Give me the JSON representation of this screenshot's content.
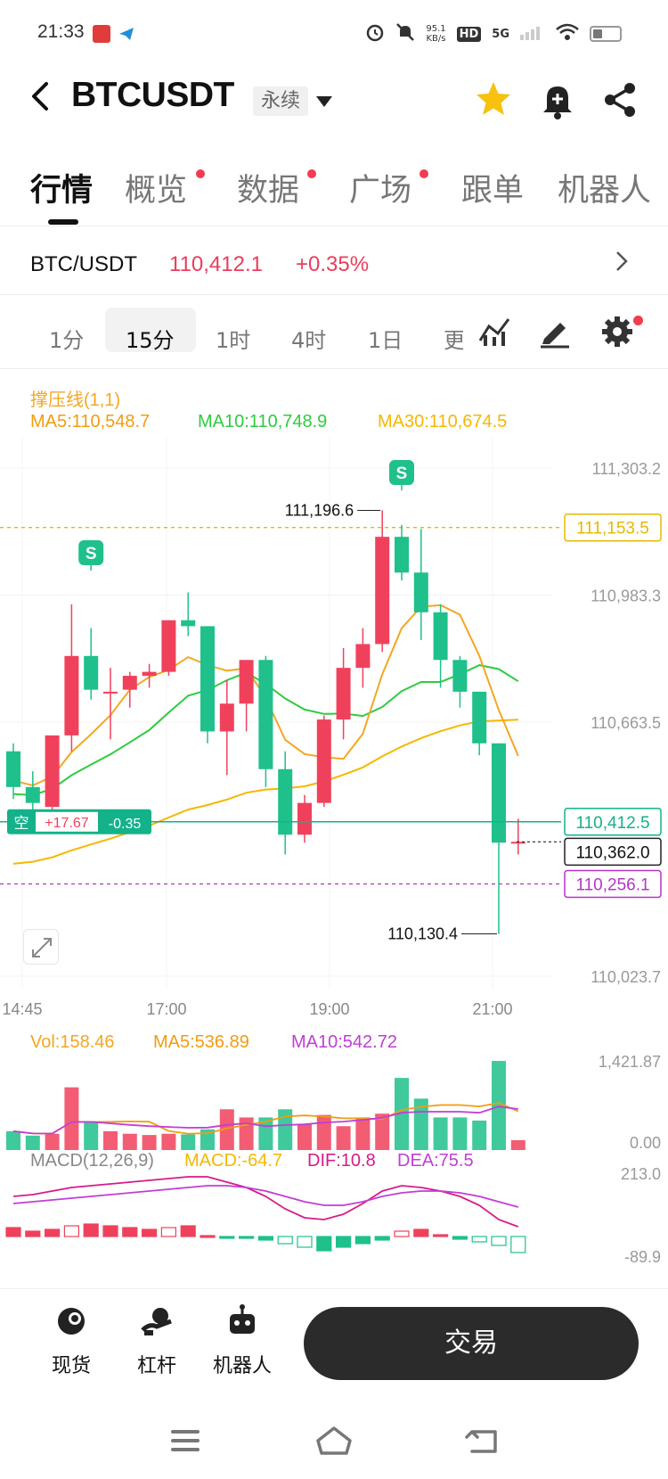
{
  "status_bar": {
    "time": "21:33",
    "net_speed_value": "95.1",
    "net_speed_unit": "KB/s",
    "hd_label": "HD",
    "network_label": "5G"
  },
  "header": {
    "symbol": "BTCUSDT",
    "contract_type": "永续"
  },
  "tabs": [
    {
      "label": "行情",
      "active": true,
      "dot": false
    },
    {
      "label": "概览",
      "active": false,
      "dot": true
    },
    {
      "label": "数据",
      "active": false,
      "dot": true
    },
    {
      "label": "广场",
      "active": false,
      "dot": true
    },
    {
      "label": "跟单",
      "active": false,
      "dot": false
    },
    {
      "label": "机器人",
      "active": false,
      "dot": false
    }
  ],
  "ticker": {
    "pair": "BTC/USDT",
    "price": "110,412.1",
    "change": "+0.35%"
  },
  "intervals": [
    {
      "label": "1分",
      "selected": false
    },
    {
      "label": "15分",
      "selected": true
    },
    {
      "label": "1时",
      "selected": false
    },
    {
      "label": "4时",
      "selected": false
    },
    {
      "label": "1日",
      "selected": false
    },
    {
      "label": "更",
      "selected": false
    }
  ],
  "indicators": {
    "support_resistance": "撑压线(1,1)",
    "ma5": "MA5:110,548.7",
    "ma10": "MA10:110,748.9",
    "ma30": "MA30:110,674.5"
  },
  "colors": {
    "up": "#f0415c",
    "down": "#1fc08b",
    "ma5": "#f5a623",
    "ma10": "#2ecc40",
    "ma30": "#f5b800",
    "resistance": "#e6b800",
    "support": "#b733c9",
    "position": "#13b28b"
  },
  "chart_data": {
    "type": "candlestick",
    "interval": "15分",
    "y_ticks": [
      "111,303.2",
      "110,983.3",
      "110,663.5",
      "110,023.7"
    ],
    "x_ticks": [
      "14:45",
      "17:00",
      "19:00",
      "21:00"
    ],
    "ylim": [
      110023.7,
      111303.2
    ],
    "price_tags": {
      "resistance": "111,153.5",
      "current": "110,412.5",
      "last_close": "110,362.0",
      "support": "110,256.1"
    },
    "markers": {
      "high": "111,196.6",
      "low": "110,130.4",
      "signal": "S"
    },
    "position": {
      "side": "空",
      "pnl": "+17.67",
      "pct": "-0.35"
    },
    "candles": [
      {
        "o": 110590,
        "h": 110610,
        "l": 110470,
        "c": 110500
      },
      {
        "o": 110500,
        "h": 110540,
        "l": 110440,
        "c": 110460
      },
      {
        "o": 110450,
        "h": 110620,
        "l": 110440,
        "c": 110630
      },
      {
        "o": 110630,
        "h": 110960,
        "l": 110590,
        "c": 110830
      },
      {
        "o": 110830,
        "h": 110900,
        "l": 110720,
        "c": 110745
      },
      {
        "o": 110740,
        "h": 110800,
        "l": 110620,
        "c": 110740
      },
      {
        "o": 110745,
        "h": 110790,
        "l": 110700,
        "c": 110780
      },
      {
        "o": 110780,
        "h": 110810,
        "l": 110750,
        "c": 110790
      },
      {
        "o": 110790,
        "h": 110920,
        "l": 110780,
        "c": 110920
      },
      {
        "o": 110920,
        "h": 110990,
        "l": 110880,
        "c": 110905
      },
      {
        "o": 110905,
        "h": 110905,
        "l": 110610,
        "c": 110640
      },
      {
        "o": 110640,
        "h": 110770,
        "l": 110530,
        "c": 110710
      },
      {
        "o": 110710,
        "h": 110810,
        "l": 110640,
        "c": 110820
      },
      {
        "o": 110820,
        "h": 110830,
        "l": 110500,
        "c": 110545
      },
      {
        "o": 110545,
        "h": 110590,
        "l": 110330,
        "c": 110380
      },
      {
        "o": 110380,
        "h": 110480,
        "l": 110360,
        "c": 110460
      },
      {
        "o": 110460,
        "h": 110680,
        "l": 110450,
        "c": 110670
      },
      {
        "o": 110670,
        "h": 110850,
        "l": 110620,
        "c": 110800
      },
      {
        "o": 110800,
        "h": 110900,
        "l": 110750,
        "c": 110860
      },
      {
        "o": 110860,
        "h": 111196.6,
        "l": 110840,
        "c": 111130
      },
      {
        "o": 111130,
        "h": 111160,
        "l": 111020,
        "c": 111040
      },
      {
        "o": 111040,
        "h": 111150,
        "l": 110870,
        "c": 110940
      },
      {
        "o": 110940,
        "h": 110960,
        "l": 110750,
        "c": 110820
      },
      {
        "o": 110820,
        "h": 110830,
        "l": 110700,
        "c": 110740
      },
      {
        "o": 110740,
        "h": 110740,
        "l": 110580,
        "c": 110610
      },
      {
        "o": 110610,
        "h": 110610,
        "l": 110130.4,
        "c": 110360
      },
      {
        "o": 110360,
        "h": 110420,
        "l": 110330,
        "c": 110362
      }
    ],
    "volume": {
      "label": "Vol:158.46",
      "ma5": "MA5:536.89",
      "ma10": "MA10:542.72",
      "ylim_labels": [
        "1,421.87",
        "0.00"
      ],
      "values": [
        300,
        230,
        260,
        1000,
        460,
        300,
        260,
        240,
        260,
        250,
        330,
        650,
        520,
        520,
        650,
        420,
        560,
        380,
        520,
        580,
        1150,
        820,
        520,
        520,
        470,
        1421,
        158
      ]
    },
    "macd": {
      "label": "MACD(12,26,9)",
      "macd": "MACD:-64.7",
      "dif": "DIF:10.8",
      "dea": "DEA:75.5",
      "ylim_labels": [
        "213.0",
        "-89.9"
      ]
    }
  },
  "bottom_nav": {
    "spot": "现货",
    "margin": "杠杆",
    "bot": "机器人",
    "trade": "交易"
  }
}
